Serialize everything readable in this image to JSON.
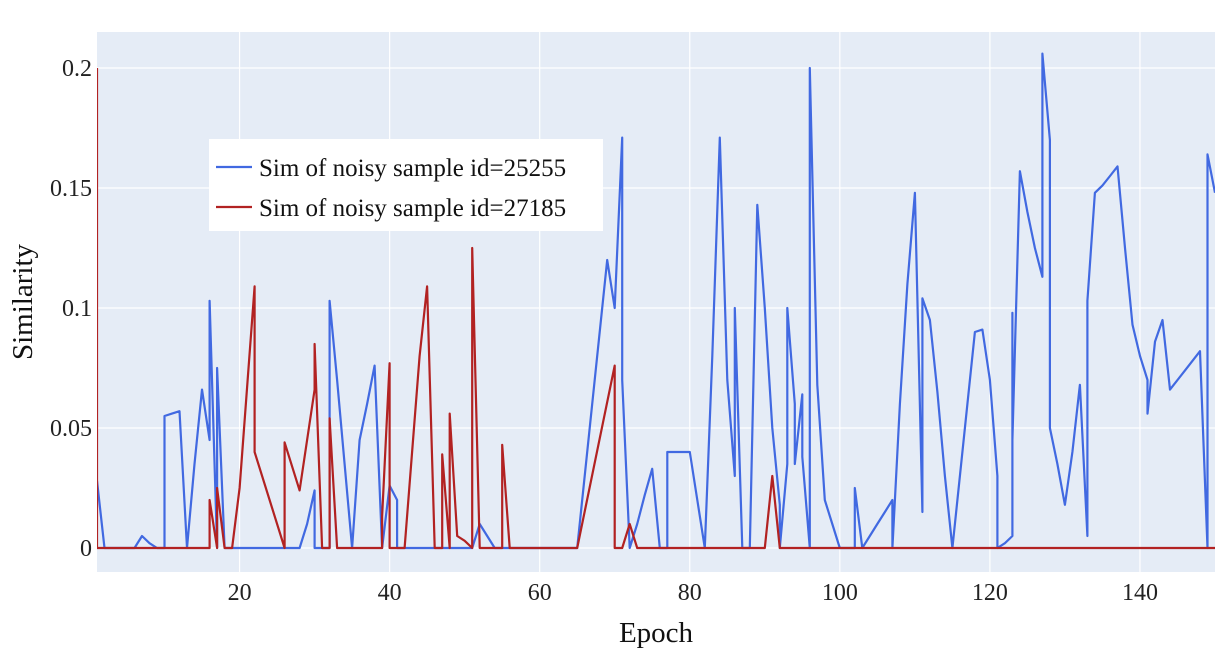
{
  "chart_data": {
    "type": "line",
    "title": "",
    "xlabel": "Epoch",
    "ylabel": "Similarity",
    "xlim": [
      1,
      150
    ],
    "ylim": [
      -0.01,
      0.215
    ],
    "xticks": [
      20,
      40,
      60,
      80,
      100,
      120,
      140
    ],
    "yticks": [
      0,
      0.05,
      0.1,
      0.15,
      0.2
    ],
    "ytick_labels": [
      "0",
      "0.05",
      "0.1",
      "0.15",
      "0.2"
    ],
    "grid": true,
    "legend_position": "upper-left",
    "colors": {
      "plot_bg": "#e5ecf6",
      "grid": "#ffffff"
    },
    "series": [
      {
        "name": "Sim of noisy sample id=25255",
        "color": "#4169e1",
        "x": [
          1,
          2,
          3,
          4,
          5,
          6,
          7,
          8,
          9,
          10,
          10,
          11,
          12,
          13,
          14,
          15,
          16,
          16,
          17,
          17,
          18,
          19,
          20,
          25,
          26,
          27,
          28,
          29,
          30,
          30,
          31,
          32,
          32,
          33,
          34,
          35,
          36,
          37,
          38,
          39,
          40,
          41,
          41,
          42,
          44,
          46,
          48,
          50,
          51,
          52,
          53,
          54,
          55,
          56,
          58,
          60,
          62,
          64,
          65,
          66,
          67,
          68,
          69,
          70,
          71,
          71,
          72,
          73,
          74,
          75,
          76,
          77,
          77,
          78,
          80,
          80,
          81,
          82,
          83,
          84,
          85,
          86,
          86,
          87,
          88,
          89,
          90,
          91,
          92,
          92,
          93,
          93,
          94,
          94,
          95,
          95,
          96,
          96,
          97,
          98,
          99,
          100,
          101,
          102,
          102,
          103,
          104,
          105,
          106,
          107,
          107,
          108,
          109,
          110,
          111,
          111,
          112,
          113,
          114,
          115,
          116,
          117,
          118,
          119,
          120,
          121,
          121,
          122,
          123,
          123,
          123,
          124,
          125,
          126,
          127,
          127,
          128,
          128,
          129,
          130,
          131,
          132,
          133,
          133,
          134,
          135,
          136,
          137,
          138,
          139,
          140,
          141,
          141,
          142,
          143,
          144,
          145,
          146,
          147,
          148,
          149,
          149,
          150
        ],
        "y": [
          0.028,
          0,
          0,
          0,
          0,
          0,
          0.005,
          0.002,
          0,
          0,
          0.055,
          0.056,
          0.057,
          0,
          0.035,
          0.066,
          0.045,
          0.103,
          0,
          0.075,
          0,
          0,
          0,
          0,
          0,
          0,
          0,
          0.01,
          0.024,
          0,
          0,
          0,
          0.103,
          0.07,
          0.035,
          0,
          0.045,
          0.06,
          0.076,
          0,
          0.026,
          0.02,
          0,
          0,
          0,
          0,
          0,
          0,
          0,
          0.01,
          0.005,
          0,
          0,
          0,
          0,
          0,
          0,
          0,
          0,
          0.03,
          0.06,
          0.09,
          0.12,
          0.1,
          0.171,
          0.07,
          0,
          0.01,
          0.022,
          0.033,
          0,
          0,
          0.04,
          0.04,
          0.04,
          0.04,
          0.02,
          0,
          0.08,
          0.171,
          0.07,
          0.03,
          0.1,
          0,
          0,
          0.143,
          0.1,
          0.05,
          0.018,
          0,
          0.035,
          0.1,
          0.06,
          0.035,
          0.064,
          0.038,
          0,
          0.2,
          0.068,
          0.02,
          0.01,
          0,
          0,
          0,
          0.025,
          0,
          0.005,
          0.01,
          0.015,
          0.02,
          0,
          0.06,
          0.11,
          0.148,
          0.015,
          0.104,
          0.095,
          0.065,
          0.03,
          0,
          0.03,
          0.06,
          0.09,
          0.091,
          0.07,
          0.03,
          0,
          0.002,
          0.005,
          0.098,
          0.045,
          0.157,
          0.14,
          0.125,
          0.113,
          0.206,
          0.17,
          0.05,
          0.035,
          0.018,
          0.04,
          0.068,
          0.005,
          0.103,
          0.148,
          0.151,
          0.155,
          0.159,
          0.125,
          0.093,
          0.08,
          0.07,
          0.056,
          0.086,
          0.095,
          0.066,
          0.07,
          0.074,
          0.078,
          0.082,
          0,
          0.164,
          0.148
        ]
      },
      {
        "name": "Sim of noisy sample id=27185",
        "color": "#b22222",
        "x": [
          1,
          1,
          1.5,
          5,
          10,
          15,
          16,
          16,
          17,
          17,
          18,
          19,
          20,
          22,
          22,
          26,
          26,
          28,
          30,
          30,
          31,
          32,
          32,
          33,
          34,
          35,
          37,
          38,
          39,
          39,
          40,
          40,
          41,
          42,
          43,
          44,
          45,
          46,
          47,
          47,
          48,
          48,
          49,
          50,
          51,
          51,
          52,
          55,
          55,
          56,
          58,
          60,
          62,
          64,
          65,
          70,
          70,
          71,
          72,
          73,
          74,
          75,
          80,
          85,
          90,
          91,
          92,
          95,
          100,
          110,
          120,
          130,
          140,
          150
        ],
        "y": [
          0.2,
          0,
          0,
          0,
          0,
          0,
          0,
          0.02,
          0,
          0.025,
          0,
          0,
          0.025,
          0.109,
          0.04,
          0,
          0.044,
          0.024,
          0.066,
          0.085,
          0,
          0,
          0.054,
          0,
          0,
          0,
          0,
          0,
          0,
          0.013,
          0.077,
          0,
          0,
          0,
          0.04,
          0.08,
          0.109,
          0,
          0,
          0.039,
          0,
          0.056,
          0.005,
          0.003,
          0,
          0.125,
          0,
          0,
          0.043,
          0,
          0,
          0,
          0,
          0,
          0,
          0.076,
          0,
          0,
          0.01,
          0,
          0,
          0,
          0,
          0,
          0,
          0.03,
          0,
          0,
          0,
          0,
          0,
          0,
          0,
          0
        ]
      }
    ]
  }
}
